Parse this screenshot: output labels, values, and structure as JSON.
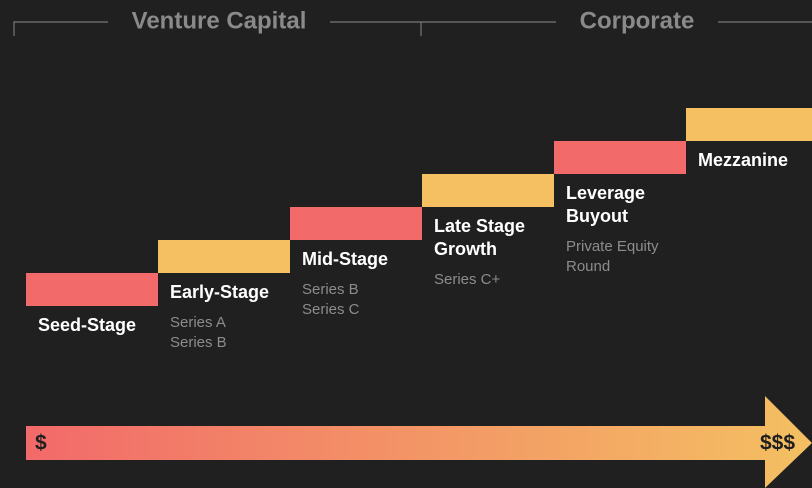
{
  "header": {
    "groups": [
      "Venture Capital",
      "Corporate"
    ]
  },
  "stages": [
    {
      "title": [
        "Seed-Stage"
      ],
      "details": [],
      "color": "#f26a6a"
    },
    {
      "title": [
        "Early-Stage"
      ],
      "details": [
        "Series A",
        "Series B"
      ],
      "color": "#f4c062"
    },
    {
      "title": [
        "Mid-Stage"
      ],
      "details": [
        "Series B",
        "Series C"
      ],
      "color": "#f26a6a"
    },
    {
      "title": [
        "Late Stage",
        "Growth"
      ],
      "details": [
        "Series C+"
      ],
      "color": "#f4c062"
    },
    {
      "title": [
        "Leverage",
        "Buyout"
      ],
      "details": [
        "Private Equity",
        "Round"
      ],
      "color": "#f26a6a"
    },
    {
      "title": [
        "Mezzanine"
      ],
      "details": [],
      "color": "#f4c062"
    }
  ],
  "arrow": {
    "start": "$",
    "end": "$$$"
  }
}
